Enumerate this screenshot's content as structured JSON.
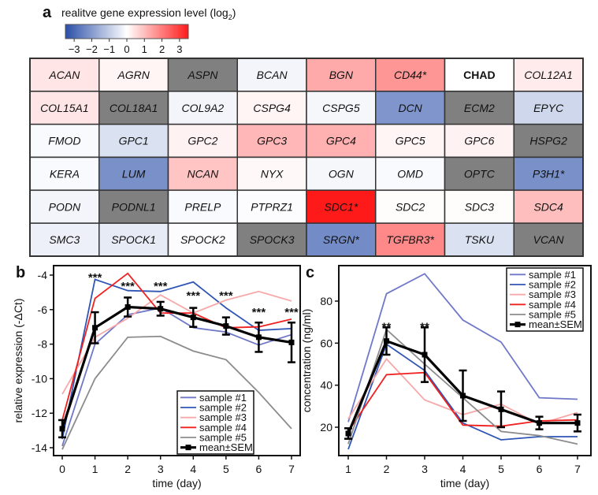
{
  "panel_a": {
    "label": "a",
    "title": "realitve gene expression level (log",
    "title_sub": "2",
    "title_end": ")",
    "colorbar": {
      "min": -3.5,
      "max": 3.5,
      "ticks": [
        -3,
        -2,
        -1,
        0,
        1,
        2,
        3
      ],
      "tick_labels": [
        "−3",
        "−2",
        "−1",
        "0",
        "1",
        "2",
        "3"
      ],
      "low_color": "#2a4fa8",
      "mid_color": "#ffffff",
      "high_color": "#ff1a1a"
    },
    "na_color": "#808080"
  },
  "chart_data": [
    {
      "type": "heatmap",
      "title": "realitve gene expression level (log2)",
      "columns": 8,
      "cells": [
        {
          "gene": "ACAN",
          "value": 0.4
        },
        {
          "gene": "AGRN",
          "value": 0.15
        },
        {
          "gene": "ASPN",
          "value": null
        },
        {
          "gene": "BCAN",
          "value": -0.2
        },
        {
          "gene": "BGN",
          "value": 1.3
        },
        {
          "gene": "CD44*",
          "value": 1.6
        },
        {
          "gene": "CHAD",
          "value": 0,
          "bold": true
        },
        {
          "gene": "COL12A1",
          "value": 0.3
        },
        {
          "gene": "COL15A1",
          "value": 0.4
        },
        {
          "gene": "COL18A1",
          "value": null
        },
        {
          "gene": "COL9A2",
          "value": -0.2
        },
        {
          "gene": "CSPG4",
          "value": 0.15
        },
        {
          "gene": "CSPG5",
          "value": -0.15
        },
        {
          "gene": "DCN",
          "value": -2.1
        },
        {
          "gene": "ECM2",
          "value": null
        },
        {
          "gene": "EPYC",
          "value": -0.8
        },
        {
          "gene": "FMOD",
          "value": -0.1
        },
        {
          "gene": "GPC1",
          "value": -0.6
        },
        {
          "gene": "GPC2",
          "value": 0.2
        },
        {
          "gene": "GPC3",
          "value": 1.1
        },
        {
          "gene": "GPC4",
          "value": 1.2
        },
        {
          "gene": "GPC5",
          "value": 0.15
        },
        {
          "gene": "GPC6",
          "value": 0.2
        },
        {
          "gene": "HSPG2",
          "value": null
        },
        {
          "gene": "KERA",
          "value": -0.1
        },
        {
          "gene": "LUM",
          "value": -2.2
        },
        {
          "gene": "NCAN",
          "value": 0.9
        },
        {
          "gene": "NYX",
          "value": 0.1
        },
        {
          "gene": "OGN",
          "value": -0.15
        },
        {
          "gene": "OMD",
          "value": -0.1
        },
        {
          "gene": "OPTC",
          "value": null
        },
        {
          "gene": "P3H1*",
          "value": -2.2
        },
        {
          "gene": "PODN",
          "value": -0.2
        },
        {
          "gene": "PODNL1",
          "value": null
        },
        {
          "gene": "PRELP",
          "value": -0.1
        },
        {
          "gene": "PTPRZ1",
          "value": -0.05
        },
        {
          "gene": "SDC1*",
          "value": 3.5
        },
        {
          "gene": "SDC2",
          "value": 0.05
        },
        {
          "gene": "SDC3",
          "value": 0.05
        },
        {
          "gene": "SDC4",
          "value": 1.0
        },
        {
          "gene": "SMC3",
          "value": -0.3
        },
        {
          "gene": "SPOCK1",
          "value": -0.4
        },
        {
          "gene": "SPOCK2",
          "value": -0.05
        },
        {
          "gene": "SPOCK3",
          "value": null
        },
        {
          "gene": "SRGN*",
          "value": -2.3
        },
        {
          "gene": "TGFBR3*",
          "value": 1.8
        },
        {
          "gene": "TSKU",
          "value": -0.6
        },
        {
          "gene": "VCAN",
          "value": null
        }
      ]
    },
    {
      "type": "line",
      "panel_label": "b",
      "xlabel": "time (day)",
      "ylabel": "relative expression (-ΔCt)",
      "x": [
        0,
        1,
        2,
        3,
        4,
        5,
        6,
        7
      ],
      "xlim": [
        -0.2,
        7.2
      ],
      "ylim": [
        -14.5,
        -3.6
      ],
      "yticks": [
        -4,
        -6,
        -8,
        -10,
        -12,
        -14
      ],
      "ytick_labels": [
        "-4",
        "-6",
        "-8",
        "-10",
        "-12",
        "-14"
      ],
      "legend_position": "bottom-right",
      "series": [
        {
          "name": "sample #1",
          "color": "#6f78c8",
          "values": [
            -13.9,
            -8.0,
            -6.3,
            -5.9,
            -7.05,
            -7.3,
            -8.05,
            -7.45
          ]
        },
        {
          "name": "sample #2",
          "color": "#2f55b5",
          "values": [
            -13.5,
            -4.25,
            -4.9,
            -4.95,
            -4.4,
            -5.9,
            -7.2,
            -7.1
          ]
        },
        {
          "name": "sample #3",
          "color": "#f7a8a8",
          "values": [
            -10.9,
            -7.6,
            -6.5,
            -5.15,
            -6.2,
            -5.45,
            -4.95,
            -5.5
          ]
        },
        {
          "name": "sample #4",
          "color": "#f02020",
          "values": [
            -12.4,
            -5.35,
            -3.9,
            -6.2,
            -6.2,
            -7.05,
            -7.0,
            -6.55
          ]
        },
        {
          "name": "sample #5",
          "color": "#8c8c8c",
          "values": [
            -14.1,
            -10.0,
            -7.6,
            -7.55,
            -8.4,
            -8.9,
            -10.8,
            -12.9
          ]
        }
      ],
      "mean": {
        "name": "mean±SEM",
        "color": "#000000",
        "values": [
          -12.9,
          -7.05,
          -5.85,
          -5.95,
          -6.45,
          -6.95,
          -7.6,
          -7.9
        ],
        "sem": [
          0.5,
          0.9,
          0.55,
          0.4,
          0.55,
          0.5,
          0.85,
          1.15
        ]
      },
      "annotations": [
        {
          "x": 1,
          "y": -4.0,
          "text": "***"
        },
        {
          "x": 2,
          "y": -4.5,
          "text": "***"
        },
        {
          "x": 3,
          "y": -4.5,
          "text": "***"
        },
        {
          "x": 4,
          "y": -5.05,
          "text": "***"
        },
        {
          "x": 5,
          "y": -5.05,
          "text": "***"
        },
        {
          "x": 6,
          "y": -6.0,
          "text": "***"
        },
        {
          "x": 7,
          "y": -6.0,
          "text": "***"
        }
      ]
    },
    {
      "type": "line",
      "panel_label": "c",
      "xlabel": "time (day)",
      "ylabel": "concentration (ng/ml)",
      "x": [
        1,
        2,
        3,
        4,
        5,
        6,
        7
      ],
      "xlim": [
        0.8,
        7.2
      ],
      "ylim": [
        7,
        97.5
      ],
      "yticks": [
        80,
        60,
        40,
        20
      ],
      "ytick_labels": [
        "80",
        "60",
        "40",
        "20"
      ],
      "legend_position": "top-right",
      "series": [
        {
          "name": "sample #1",
          "color": "#6f78c8",
          "values": [
            22.5,
            83.5,
            93,
            71,
            60.5,
            34,
            33.3
          ]
        },
        {
          "name": "sample #2",
          "color": "#2f55b5",
          "values": [
            9.5,
            59.5,
            47,
            22,
            14,
            15.5,
            15.5
          ]
        },
        {
          "name": "sample #3",
          "color": "#f7a8a8",
          "values": [
            24,
            52.5,
            33,
            26,
            31,
            21.5,
            27
          ]
        },
        {
          "name": "sample #4",
          "color": "#f02020",
          "values": [
            18,
            45,
            46,
            21,
            20.5,
            23,
            23.5
          ]
        },
        {
          "name": "sample #5",
          "color": "#8c8c8c",
          "values": [
            12,
            66.5,
            50,
            34,
            18,
            16,
            12
          ]
        }
      ],
      "mean": {
        "name": "mean±SEM",
        "color": "#000000",
        "values": [
          17,
          61,
          54.5,
          35,
          28.5,
          22,
          22
        ],
        "sem": [
          2.5,
          6.5,
          13,
          12,
          8.5,
          3,
          4
        ]
      },
      "annotations": [
        {
          "x": 2,
          "y": 69,
          "text": "**"
        },
        {
          "x": 3,
          "y": 69,
          "text": "**"
        }
      ]
    }
  ]
}
